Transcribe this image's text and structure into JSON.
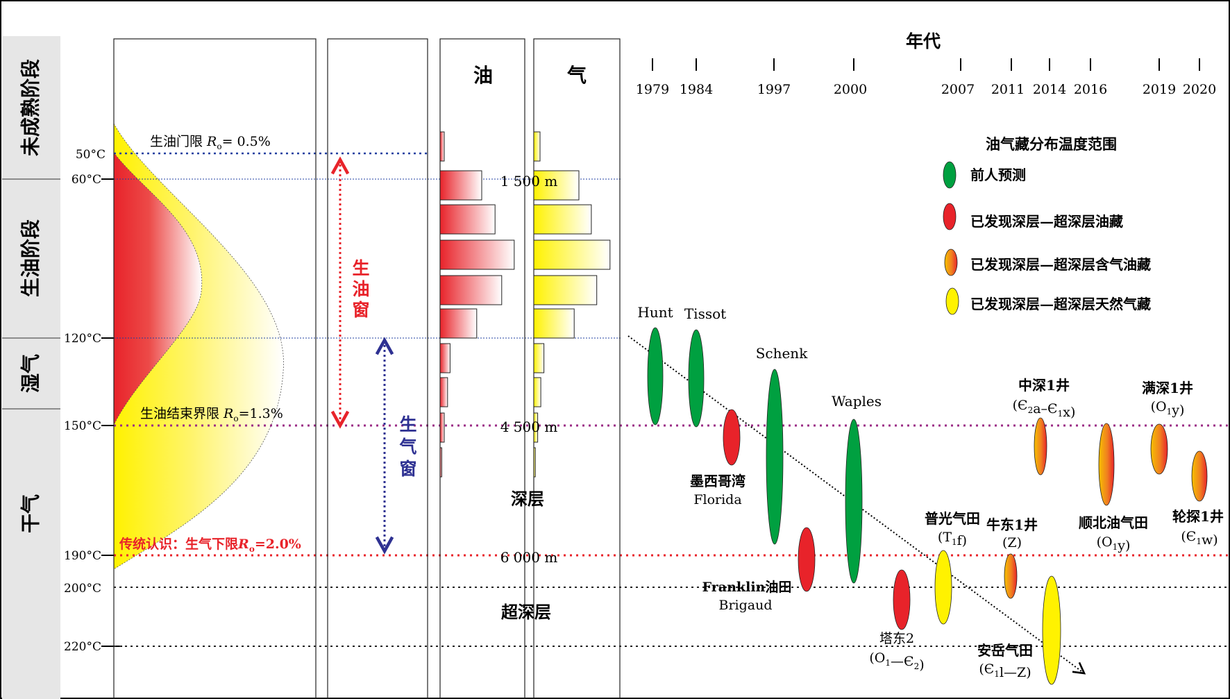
{
  "stages": [
    "未成熟阶段",
    "生油阶段",
    "湿气",
    "干气"
  ],
  "temperatures": [
    "50°C",
    "60°C",
    "120°C",
    "150°C",
    "190°C",
    "200°C",
    "220°C"
  ],
  "thresholds": {
    "oil_gate_prefix": "生油门限 ",
    "oil_gate_sym": "R",
    "oil_gate_sub": "o",
    "oil_gate_value": "= 0.5%",
    "oil_end_prefix": "生油结束界限 ",
    "oil_end_sym": "R",
    "oil_end_sub": "o",
    "oil_end_value": "=1.3%",
    "traditional_prefix": "传统认识：生气下限",
    "traditional_sym": "R",
    "traditional_sub": "o",
    "traditional_value": "=2.0%"
  },
  "windows": {
    "oil_window": [
      "生",
      "油",
      "窗"
    ],
    "gas_window": [
      "生",
      "气",
      "窗"
    ]
  },
  "columns": {
    "oil": "油",
    "gas": "气"
  },
  "depths": [
    "1 500 m",
    "4 500 m",
    "6 000 m"
  ],
  "depth_zones": {
    "deep": "深层",
    "ultra_deep": "超深层"
  },
  "oil_bar_levels": [
    0.05,
    0.5,
    0.66,
    0.89,
    0.74,
    0.44,
    0.12,
    0.09,
    0.05,
    0.02
  ],
  "gas_bar_levels": [
    0.08,
    0.58,
    0.74,
    0.98,
    0.81,
    0.52,
    0.13,
    0.09,
    0.05,
    0.02
  ],
  "timeline": {
    "title": "年代",
    "years": [
      "1979",
      "1984",
      "1997",
      "2000",
      "2007",
      "2011",
      "2014",
      "2016",
      "2019",
      "2020"
    ]
  },
  "legend": {
    "title": "油气藏分布温度范围",
    "items": [
      "前人预测",
      "已发现深层—超深层油藏",
      "已发现深层—超深层含气油藏",
      "已发现深层—超深层天然气藏"
    ]
  },
  "colors": {
    "prediction": "#00a040",
    "oil": "#e8232a",
    "oil_gas": "#f7941d",
    "gas": "#fff200",
    "oil_threshold_line": "#1f3fa0",
    "boundary_150": "#9b2c86",
    "boundary_190": "#e8232a",
    "oil_window_arrow": "#e8232a",
    "gas_window_arrow": "#2e3192"
  },
  "fields": {
    "hunt": "Hunt",
    "tissot": "Tissot",
    "schenk": "Schenk",
    "waples": "Waples",
    "mexico": "墨西哥湾",
    "florida": "Florida",
    "franklin": "Franklin油田",
    "brigaud": "Brigaud",
    "tadong_name": "塔东2",
    "tadong_strat": "(O1—Є2)",
    "puguang_name": "普光气田",
    "puguang_strat": "(T1f)",
    "niudong_name": "牛东1井",
    "niudong_strat": "(Z)",
    "zhongshen_name": "中深1井",
    "zhongshen_strat": "(Є2a–Є1x)",
    "shunbei_name": "顺北油气田",
    "shunbei_strat": "(O1y)",
    "manshen_name": "满深1井",
    "manshen_strat": "(O1y)",
    "luntan_name": "轮探1井",
    "luntan_strat": "(Є1w)",
    "anyue_name": "安岳气田",
    "anyue_strat": "(Є1l—Z)"
  }
}
